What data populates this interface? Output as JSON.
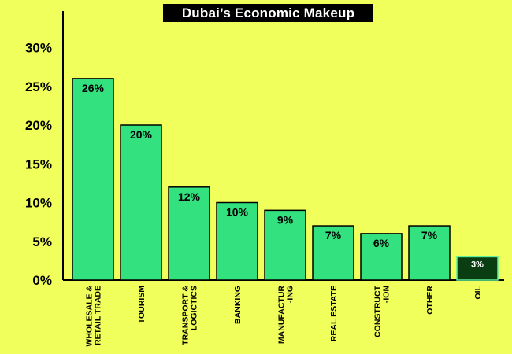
{
  "chart_data": {
    "type": "bar",
    "title": "Dubai’s Economic Makeup",
    "xlabel": "",
    "ylabel": "",
    "ylim": [
      0,
      33
    ],
    "yticks": [
      0,
      5,
      10,
      15,
      20,
      25,
      30
    ],
    "ytick_labels": [
      "0%",
      "5%",
      "10%",
      "15%",
      "20%",
      "25%",
      "30%"
    ],
    "grid": false,
    "categories": [
      [
        "WHOLESALE &",
        "RETAIL TRADE"
      ],
      [
        "TOURISM"
      ],
      [
        "TRANSPORT &",
        "LOGICTICS"
      ],
      [
        "BANKING"
      ],
      [
        "MANUFACTUR",
        "-ING"
      ],
      [
        "REAL ESTATE"
      ],
      [
        "CONSTRUCT",
        "-ION"
      ],
      [
        "OTHER"
      ],
      [
        "OIL"
      ]
    ],
    "values": [
      26,
      20,
      12,
      10,
      9,
      7,
      6,
      7,
      3
    ],
    "value_labels": [
      "26%",
      "20%",
      "12%",
      "10%",
      "9%",
      "7%",
      "6%",
      "7%",
      "3%"
    ],
    "colors": {
      "background": "#f0ff5b",
      "bar": "#33e17f",
      "bar_highlight": "#0b3d12",
      "bar_stroke": "#000000",
      "axis": "#000000",
      "title_bg": "#000000",
      "title_text": "#ffffff"
    },
    "highlight_index": 8
  }
}
